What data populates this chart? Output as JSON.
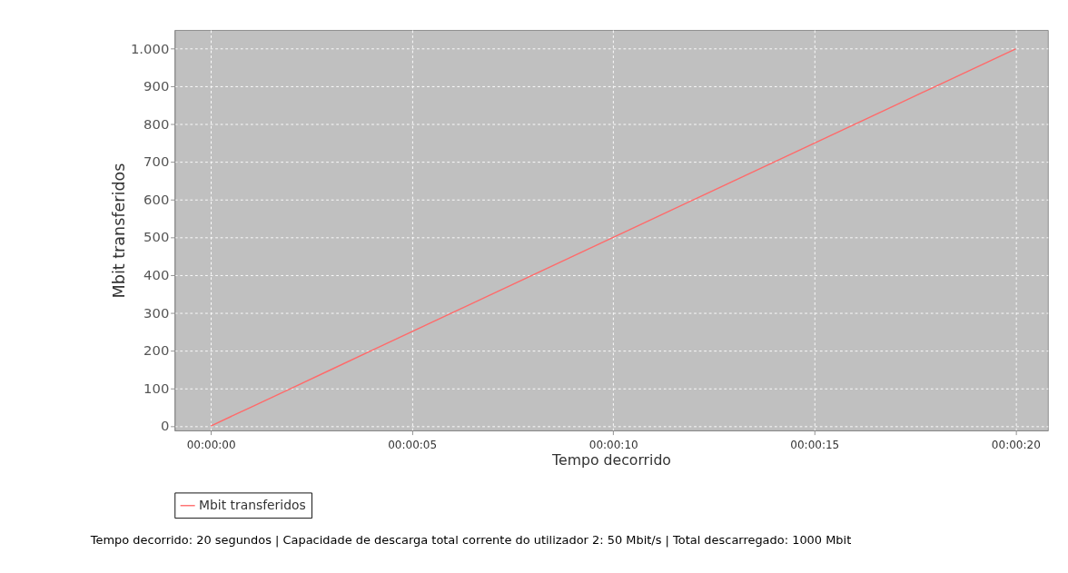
{
  "chart_data": {
    "type": "line",
    "xlabel": "Tempo decorrido",
    "ylabel": "Mbit transferidos",
    "x": [
      0,
      1,
      2,
      3,
      4,
      5,
      6,
      7,
      8,
      9,
      10,
      11,
      12,
      13,
      14,
      15,
      16,
      17,
      18,
      19,
      20
    ],
    "series": [
      {
        "name": "Mbit transferidos",
        "color": "#ff6a6a",
        "values": [
          0,
          50,
          100,
          150,
          200,
          250,
          300,
          350,
          400,
          450,
          500,
          550,
          600,
          650,
          700,
          750,
          800,
          850,
          900,
          950,
          1000
        ]
      }
    ],
    "xlim": [
      -0.9,
      20.8
    ],
    "xticks": [
      {
        "value": 0,
        "label": "00:00:00"
      },
      {
        "value": 5,
        "label": "00:00:05"
      },
      {
        "value": 10,
        "label": "00:00:10"
      },
      {
        "value": 15,
        "label": "00:00:15"
      },
      {
        "value": 20,
        "label": "00:00:20"
      }
    ],
    "ylim": [
      -12,
      1050
    ],
    "yticks": [
      0,
      100,
      200,
      300,
      400,
      500,
      600,
      700,
      800,
      900,
      {
        "value": 1000,
        "label": "1.000"
      }
    ],
    "grid": true,
    "legend": "bottom",
    "marker": "none",
    "line_style": "solid",
    "annotations": [
      "Tempo decorrido: 20 segundos | Capacidade de descarga total corrente do utilizador 2: 50 Mbit/s | Total descarregado: 1000 Mbit"
    ]
  }
}
